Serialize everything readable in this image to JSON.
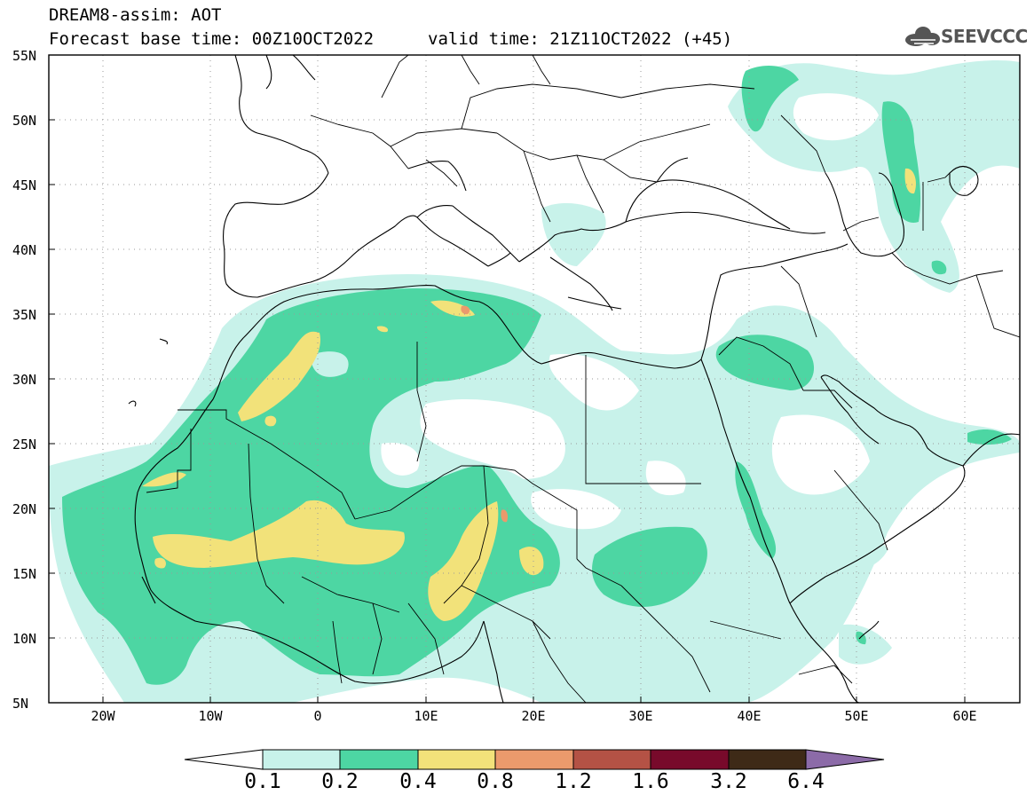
{
  "header": {
    "model_line": "DREAM8-assim: AOT",
    "base_time_line": "Forecast base time: 00Z10OCT2022",
    "valid_time_line": "valid time: 21Z11OCT2022 (+45)",
    "logo_text": "SEEVCCC"
  },
  "axes": {
    "lat_labels": [
      "55N",
      "50N",
      "45N",
      "40N",
      "35N",
      "30N",
      "25N",
      "20N",
      "15N",
      "10N",
      "5N"
    ],
    "lon_labels": [
      "20W",
      "10W",
      "0",
      "10E",
      "20E",
      "30E",
      "40E",
      "50E",
      "60E"
    ]
  },
  "colorbar": {
    "labels": [
      "0.1",
      "0.2",
      "0.4",
      "0.8",
      "1.2",
      "1.6",
      "3.2",
      "6.4"
    ],
    "colors": [
      "#ffffff",
      "#c8f2ea",
      "#4dd6a3",
      "#f2e27a",
      "#eb9a6c",
      "#b45245",
      "#780a2b",
      "#3e2a17",
      "#8c6ba8"
    ]
  },
  "map_data": {
    "lat_range": [
      5,
      55
    ],
    "lon_range": [
      -25,
      65
    ],
    "fill_levels": [
      "0.1-0.2",
      "0.2-0.4",
      "0.4-0.8",
      "0.8-1.2"
    ]
  }
}
